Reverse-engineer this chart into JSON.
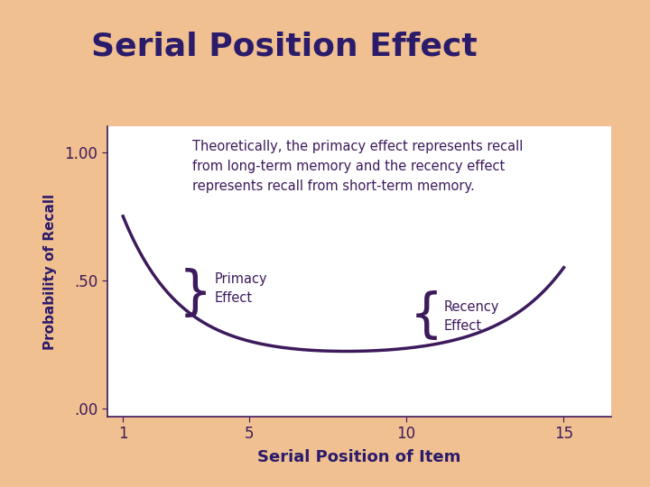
{
  "title": "Serial Position Effect",
  "title_color": "#2B1B6B",
  "title_fontsize": 26,
  "xlabel": "Serial Position of Item",
  "ylabel": "Probability of Recall",
  "xlabel_fontsize": 13,
  "ylabel_fontsize": 11,
  "xticks": [
    1,
    5,
    10,
    15
  ],
  "ytick_labels": [
    ".00",
    ".50",
    "1.00"
  ],
  "ytick_vals": [
    0.0,
    0.5,
    1.0
  ],
  "xlim": [
    0.5,
    16.5
  ],
  "ylim": [
    -0.03,
    1.1
  ],
  "curve_color": "#3D1A5C",
  "curve_linewidth": 2.5,
  "annotation_text": "Theoretically, the primacy effect represents recall\nfrom long-term memory and the recency effect\nrepresents recall from short-term memory.",
  "annotation_color": "#3D1A5C",
  "annotation_fontsize": 10.5,
  "primacy_label": "Primacy\nEffect",
  "recency_label": "Recency\nEffect",
  "label_color": "#3D1A5C",
  "label_fontsize": 10.5,
  "background_slide": "#F0C090",
  "background_top": "#F5C8D0",
  "strip_color": "#D4A0C8"
}
